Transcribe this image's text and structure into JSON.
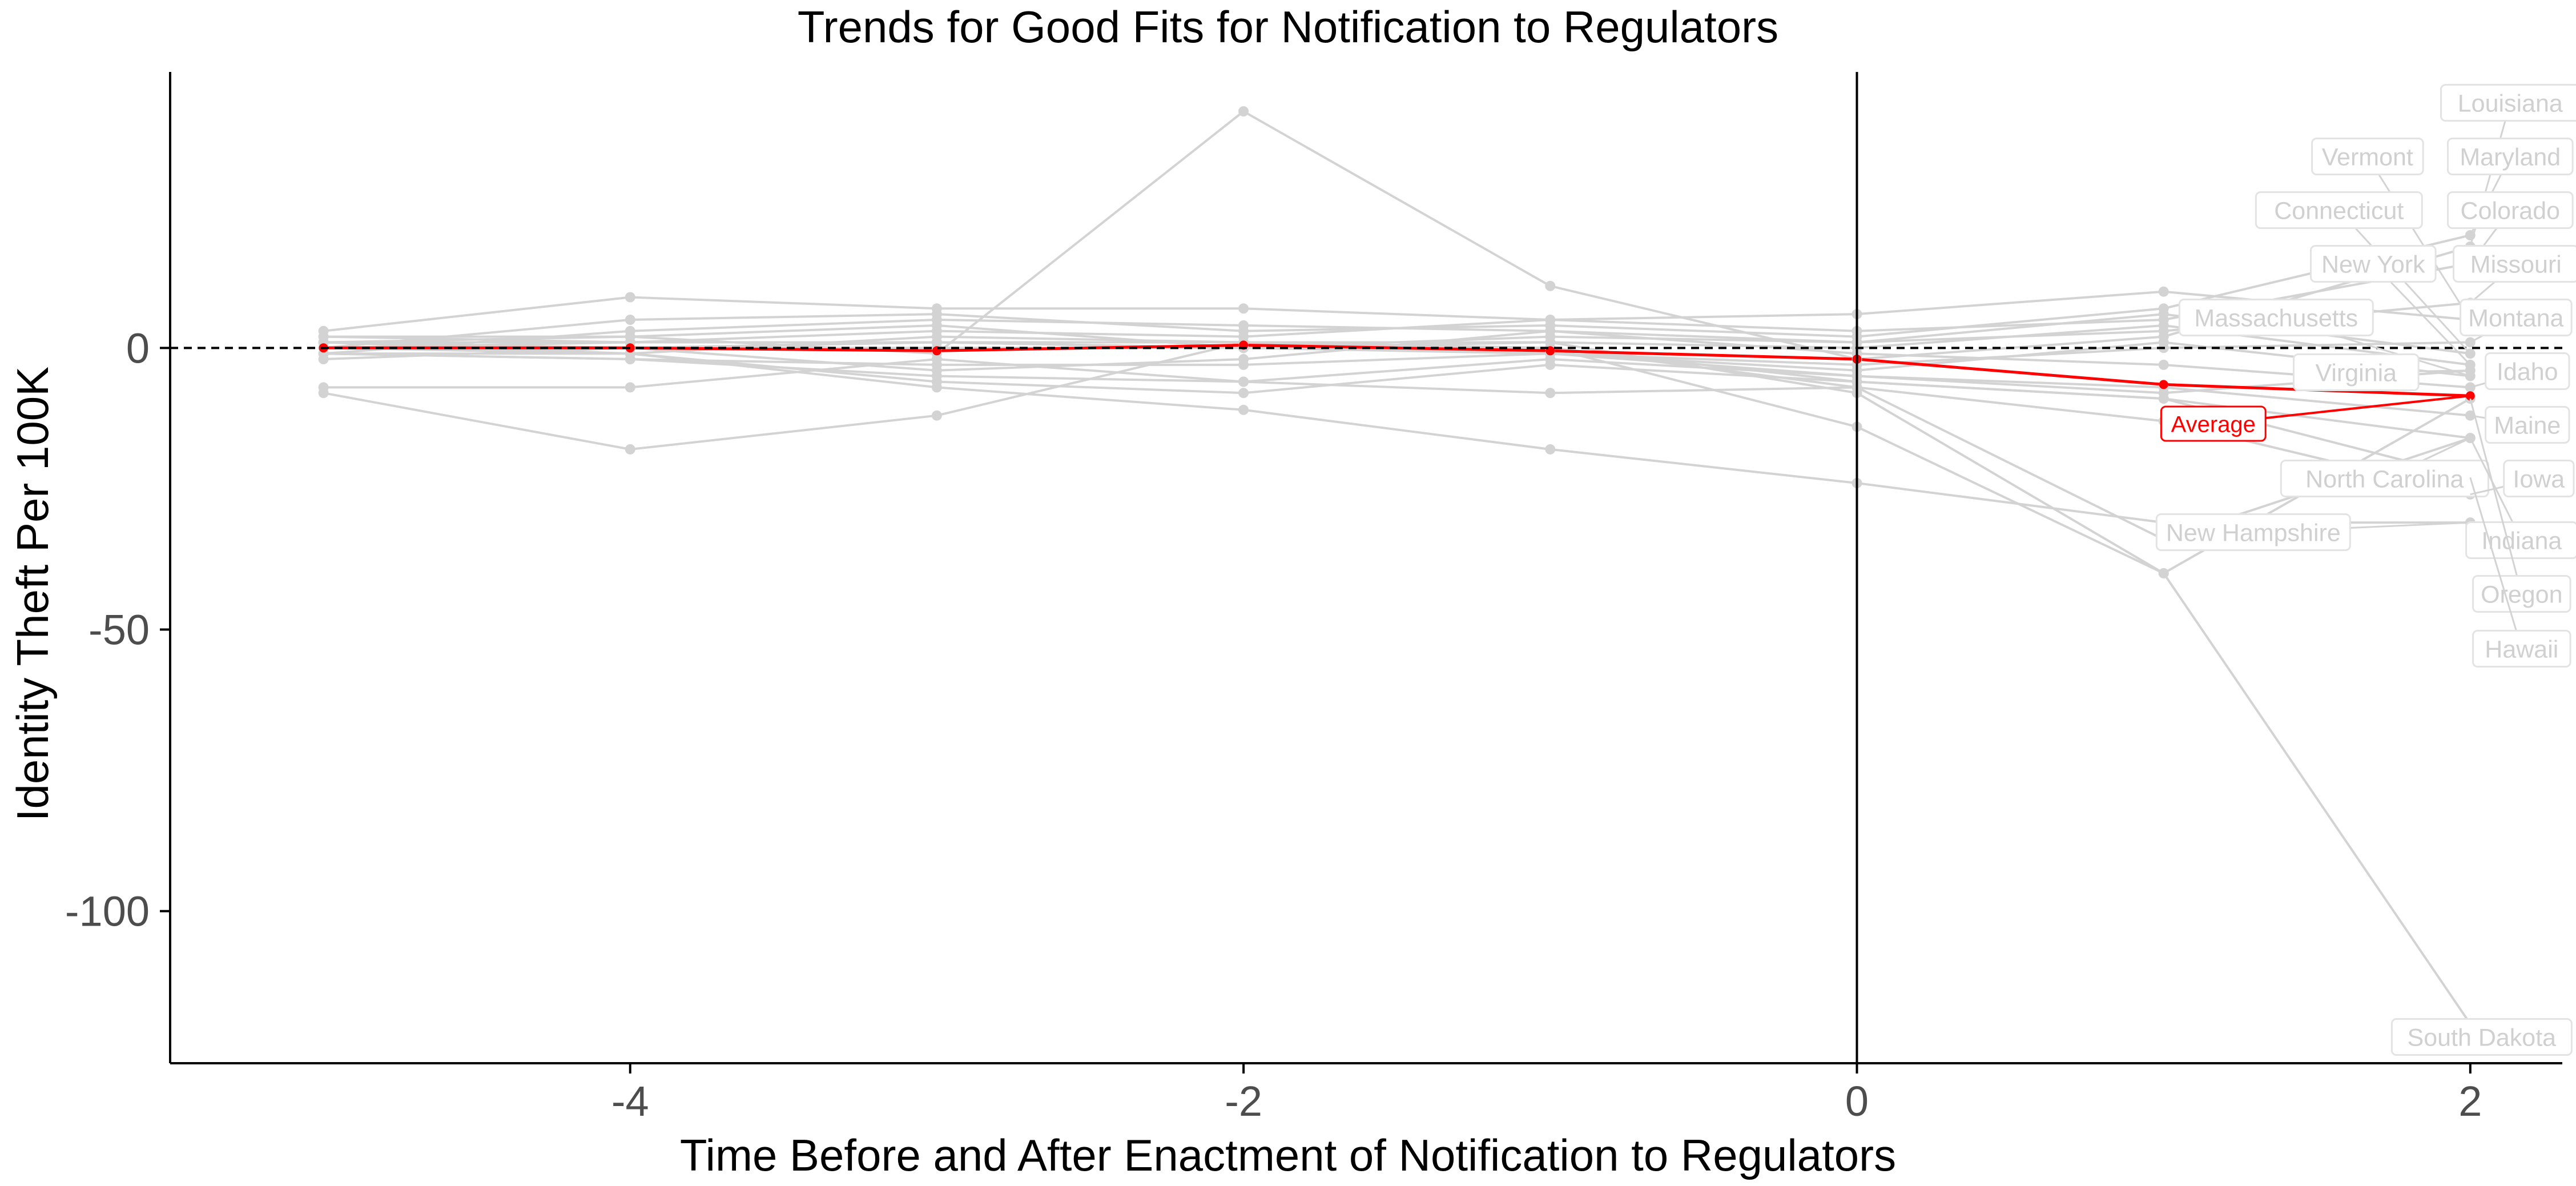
{
  "chart_data": {
    "type": "line",
    "title": "Trends for Good Fits for Notification to Regulators",
    "xlabel": "Time Before and After Enactment of Notification to Regulators",
    "ylabel": "Identity Theft Per 100K",
    "xlim": [
      -5.5,
      2.3
    ],
    "ylim": [
      -127,
      49
    ],
    "x_ticks": [
      -4,
      -2,
      0,
      2
    ],
    "x_tick_labels": [
      "-4",
      "-2",
      "0",
      "2"
    ],
    "y_ticks": [
      0,
      -50,
      -100
    ],
    "y_tick_labels": [
      "0",
      "-50",
      "-100"
    ],
    "x": [
      -5,
      -4,
      -3,
      -2,
      -1,
      0,
      1,
      2
    ],
    "grid": false,
    "reference_lines": {
      "horizontal_dashed_y": 0,
      "vertical_solid_x": 0
    },
    "colors": {
      "state_line": "#d3d3d3",
      "average_line": "#ff0000",
      "axis": "#000000",
      "tick_label": "#4d4d4d"
    },
    "series": [
      {
        "name": "Louisiana",
        "label": "Louisiana",
        "values": [
          1,
          2,
          -1,
          42,
          11,
          -2,
          2,
          18
        ]
      },
      {
        "name": "Vermont",
        "label": "Vermont",
        "values": [
          3,
          9,
          7,
          7,
          5,
          6,
          10,
          5
        ]
      },
      {
        "name": "Maryland",
        "label": "Maryland",
        "values": [
          0,
          5,
          6,
          3,
          4,
          2,
          7,
          20
        ]
      },
      {
        "name": "Connecticut",
        "label": "Connecticut",
        "values": [
          -1,
          3,
          5,
          4,
          3,
          1,
          6,
          -1
        ]
      },
      {
        "name": "Colorado",
        "label": "Colorado",
        "values": [
          2,
          1,
          3,
          2,
          5,
          3,
          5,
          15
        ]
      },
      {
        "name": "New York",
        "label": "New York",
        "values": [
          1,
          -1,
          2,
          1,
          1,
          0,
          4,
          -3
        ]
      },
      {
        "name": "Missouri",
        "label": "Missouri",
        "values": [
          2,
          2,
          4,
          0,
          2,
          1,
          3,
          8
        ]
      },
      {
        "name": "Massachusetts",
        "label": "Massachusetts",
        "values": [
          -2,
          0,
          1,
          0,
          -1,
          -4,
          1,
          -5
        ]
      },
      {
        "name": "Montana",
        "label": "Montana",
        "values": [
          0,
          1,
          1,
          1,
          -1,
          -3,
          0,
          1
        ]
      },
      {
        "name": "Virginia",
        "label": "Virginia",
        "values": [
          -7,
          -7,
          -2,
          -6,
          -2,
          -5,
          -8,
          -4
        ]
      },
      {
        "name": "Idaho",
        "label": "Idaho",
        "values": [
          1,
          0,
          -4,
          -2,
          3,
          -1,
          -3,
          -7
        ]
      },
      {
        "name": "Maine",
        "label": "Maine",
        "values": [
          -1,
          -2,
          -3,
          -3,
          -1,
          -5,
          -7,
          -12
        ]
      },
      {
        "name": "North Carolina",
        "label": "North Carolina",
        "values": [
          -1,
          -1,
          -6,
          -8,
          -3,
          -6,
          -9,
          -16
        ]
      },
      {
        "name": "Iowa",
        "label": "Iowa",
        "values": [
          -1,
          -2,
          -5,
          -6,
          -8,
          -7,
          -13,
          -26
        ]
      },
      {
        "name": "New Hampshire",
        "label": "New Hampshire",
        "values": [
          0,
          -1,
          -7,
          -11,
          -18,
          -24,
          -31,
          -31
        ]
      },
      {
        "name": "Indiana",
        "label": "Indiana",
        "values": [
          -8,
          -18,
          -12,
          1,
          0,
          -7,
          -34,
          -16
        ]
      },
      {
        "name": "Oregon",
        "label": "Oregon",
        "values": [
          1,
          1,
          1,
          0,
          1,
          -8,
          -40,
          -9
        ]
      },
      {
        "name": "Hawaii",
        "label": "Hawaii",
        "values": [
          0,
          0,
          1,
          0,
          0,
          -6,
          -9,
          -23
        ]
      },
      {
        "name": "South Dakota",
        "label": "South Dakota",
        "values": [
          0,
          0,
          0,
          0,
          0,
          -14,
          -40,
          -120
        ]
      },
      {
        "name": "Average",
        "label": "Average",
        "values": [
          0,
          0,
          -0.5,
          0.5,
          -0.5,
          -2,
          -6.5,
          -8.5
        ]
      }
    ]
  }
}
